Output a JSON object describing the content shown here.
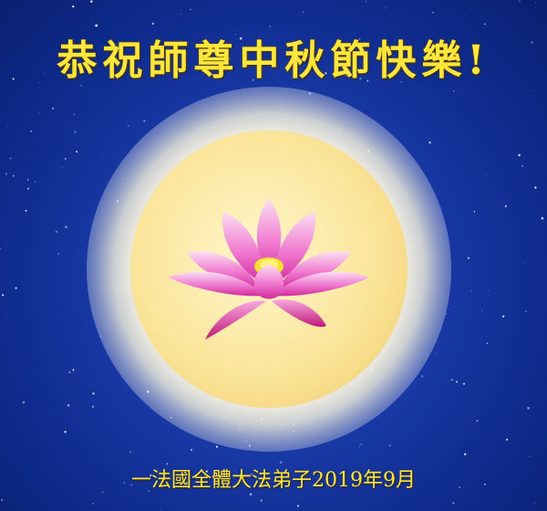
{
  "greeting": "恭祝師尊中秋節快樂!",
  "signature": "一法國全體大法弟子2019年9月",
  "colors": {
    "text": "#ffe63a",
    "sky": "#1a3aa8",
    "moon": "#fbe59a",
    "lotus_petal": "#f070c8",
    "lotus_center": "#f8e030"
  },
  "icons": [
    "full-moon",
    "lotus-flower",
    "stars"
  ]
}
